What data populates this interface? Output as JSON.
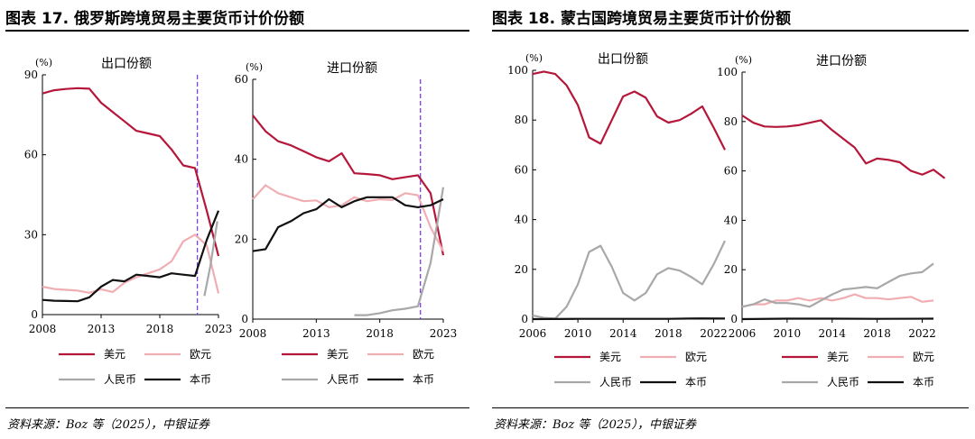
{
  "figure17": {
    "title": "图表 17. 俄罗斯跨境贸易主要货币计价份额",
    "source": "资料来源：Boz 等（2025），中银证券"
  },
  "figure18": {
    "title": "图表 18. 蒙古国跨境贸易主要货币计价份额",
    "source": "资料来源：Boz 等（2025），中银证券"
  },
  "colors": {
    "usd": "#b5173a",
    "eur": "#f0aeb3",
    "rmb": "#a8a8a8",
    "local": "#111111",
    "marker": "#7b3fe4"
  },
  "chart_data": [
    {
      "type": "line",
      "title": "出口份额",
      "unit": "(%)",
      "ylim": [
        0,
        90
      ],
      "yticks": [
        0,
        30,
        60,
        90
      ],
      "xlim": [
        2008,
        2023
      ],
      "xticks": [
        2008,
        2013,
        2018,
        2023
      ],
      "marker_x": 2021.2,
      "series": [
        {
          "name": "美元",
          "color": "usd",
          "points": [
            [
              2008,
              83
            ],
            [
              2009,
              84.2
            ],
            [
              2010,
              84.7
            ],
            [
              2011,
              85
            ],
            [
              2012,
              84.8
            ],
            [
              2013,
              79.5
            ],
            [
              2014,
              76
            ],
            [
              2015,
              72.5
            ],
            [
              2016,
              69
            ],
            [
              2017,
              68
            ],
            [
              2018,
              67
            ],
            [
              2019,
              62
            ],
            [
              2020,
              56
            ],
            [
              2021,
              55
            ],
            [
              2022,
              39
            ],
            [
              2023,
              22
            ]
          ]
        },
        {
          "name": "欧元",
          "color": "eur",
          "points": [
            [
              2008,
              10.5
            ],
            [
              2009,
              9.6
            ],
            [
              2010,
              9.3
            ],
            [
              2011,
              9
            ],
            [
              2012,
              8.2
            ],
            [
              2013,
              9.5
            ],
            [
              2014,
              8.5
            ],
            [
              2015,
              12
            ],
            [
              2016,
              14
            ],
            [
              2017,
              15.5
            ],
            [
              2018,
              17
            ],
            [
              2019,
              20
            ],
            [
              2020,
              27.5
            ],
            [
              2021,
              30
            ],
            [
              2022,
              26
            ],
            [
              2023,
              8
            ]
          ]
        },
        {
          "name": "人民币",
          "color": "rmb",
          "points": [
            [
              2021.8,
              7
            ],
            [
              2022.3,
              18
            ],
            [
              2022.9,
              35
            ]
          ]
        },
        {
          "name": "本币",
          "color": "local",
          "points": [
            [
              2008,
              5.5
            ],
            [
              2009,
              5.2
            ],
            [
              2010,
              5.1
            ],
            [
              2011,
              5
            ],
            [
              2012,
              6.5
            ],
            [
              2013,
              10.5
            ],
            [
              2014,
              13
            ],
            [
              2015,
              12.5
            ],
            [
              2016,
              15
            ],
            [
              2017,
              14.5
            ],
            [
              2018,
              14
            ],
            [
              2019,
              15.5
            ],
            [
              2020,
              15
            ],
            [
              2021,
              14.5
            ],
            [
              2022,
              28
            ],
            [
              2023,
              39
            ]
          ]
        }
      ]
    },
    {
      "type": "line",
      "title": "进口份额",
      "unit": "(%)",
      "ylim": [
        0,
        60
      ],
      "yticks": [
        0,
        20,
        40,
        60
      ],
      "xlim": [
        2008,
        2023
      ],
      "xticks": [
        2008,
        2013,
        2018,
        2023
      ],
      "marker_x": 2021.2,
      "series": [
        {
          "name": "美元",
          "color": "usd",
          "points": [
            [
              2008,
              51
            ],
            [
              2009,
              47
            ],
            [
              2010,
              44.5
            ],
            [
              2011,
              43.5
            ],
            [
              2012,
              42
            ],
            [
              2013,
              40.5
            ],
            [
              2014,
              39.5
            ],
            [
              2015,
              41.5
            ],
            [
              2016,
              36.5
            ],
            [
              2017,
              36.3
            ],
            [
              2018,
              36
            ],
            [
              2019,
              35
            ],
            [
              2020,
              35.5
            ],
            [
              2021,
              36
            ],
            [
              2022,
              31.5
            ],
            [
              2023,
              16
            ]
          ]
        },
        {
          "name": "欧元",
          "color": "eur",
          "points": [
            [
              2008,
              30
            ],
            [
              2009,
              33.5
            ],
            [
              2010,
              31.5
            ],
            [
              2011,
              30.5
            ],
            [
              2012,
              29.5
            ],
            [
              2013,
              29.7
            ],
            [
              2014,
              28
            ],
            [
              2015,
              28.5
            ],
            [
              2016,
              30.5
            ],
            [
              2017,
              29.5
            ],
            [
              2018,
              30
            ],
            [
              2019,
              29.8
            ],
            [
              2020,
              31.5
            ],
            [
              2021,
              31
            ],
            [
              2022,
              23
            ],
            [
              2023,
              17
            ]
          ]
        },
        {
          "name": "人民币",
          "color": "rmb",
          "points": [
            [
              2016,
              1
            ],
            [
              2017,
              1
            ],
            [
              2018,
              1.5
            ],
            [
              2019,
              2.2
            ],
            [
              2020,
              2.6
            ],
            [
              2021,
              3.2
            ],
            [
              2022,
              14
            ],
            [
              2023,
              33
            ]
          ]
        },
        {
          "name": "本币",
          "color": "local",
          "points": [
            [
              2008,
              17
            ],
            [
              2009,
              17.5
            ],
            [
              2010,
              23
            ],
            [
              2011,
              24.5
            ],
            [
              2012,
              26.5
            ],
            [
              2013,
              27.5
            ],
            [
              2014,
              30
            ],
            [
              2015,
              28
            ],
            [
              2016,
              29.5
            ],
            [
              2017,
              30.5
            ],
            [
              2018,
              30.5
            ],
            [
              2019,
              30.5
            ],
            [
              2020,
              28.5
            ],
            [
              2021,
              28
            ],
            [
              2022,
              28.5
            ],
            [
              2023,
              30
            ]
          ]
        }
      ]
    },
    {
      "type": "line",
      "title": "出口份额",
      "unit": "(%)",
      "ylim": [
        0,
        100
      ],
      "yticks": [
        0,
        20,
        40,
        60,
        80,
        100
      ],
      "xlim": [
        2006,
        2023
      ],
      "xticks": [
        2006,
        2010,
        2014,
        2018,
        2022
      ],
      "series": [
        {
          "name": "美元",
          "color": "usd",
          "points": [
            [
              2006,
              98.5
            ],
            [
              2007,
              99.5
            ],
            [
              2008,
              98.5
            ],
            [
              2009,
              94
            ],
            [
              2010,
              86
            ],
            [
              2011,
              73
            ],
            [
              2012,
              70.5
            ],
            [
              2013,
              80
            ],
            [
              2014,
              89.5
            ],
            [
              2015,
              91.5
            ],
            [
              2016,
              89
            ],
            [
              2017,
              81.5
            ],
            [
              2018,
              79
            ],
            [
              2019,
              80
            ],
            [
              2020,
              82.5
            ],
            [
              2021,
              85.5
            ],
            [
              2022,
              77
            ],
            [
              2023,
              68
            ]
          ]
        },
        {
          "name": "欧元",
          "color": "eur",
          "points": []
        },
        {
          "name": "人民币",
          "color": "rmb",
          "points": [
            [
              2006,
              1.5
            ],
            [
              2007,
              0.5
            ],
            [
              2008,
              0.2
            ],
            [
              2009,
              5
            ],
            [
              2010,
              14
            ],
            [
              2011,
              27
            ],
            [
              2012,
              29.5
            ],
            [
              2013,
              21
            ],
            [
              2014,
              10.5
            ],
            [
              2015,
              7.5
            ],
            [
              2016,
              10.5
            ],
            [
              2017,
              18
            ],
            [
              2018,
              20.5
            ],
            [
              2019,
              19.5
            ],
            [
              2020,
              17
            ],
            [
              2021,
              14
            ],
            [
              2022,
              22
            ],
            [
              2023,
              31.5
            ]
          ]
        },
        {
          "name": "本币",
          "color": "local",
          "points": [
            [
              2006,
              0
            ],
            [
              2010,
              0.1
            ],
            [
              2014,
              0.1
            ],
            [
              2018,
              0.1
            ],
            [
              2021,
              0.3
            ],
            [
              2023,
              0.2
            ]
          ]
        }
      ]
    },
    {
      "type": "line",
      "title": "进口份额",
      "unit": "(%)",
      "ylim": [
        0,
        100
      ],
      "yticks": [
        0,
        20,
        40,
        60,
        80,
        100
      ],
      "xlim": [
        2006,
        2023
      ],
      "xticks": [
        2006,
        2010,
        2014,
        2018,
        2022
      ],
      "series": [
        {
          "name": "美元",
          "color": "usd",
          "points": [
            [
              2006,
              82.5
            ],
            [
              2007,
              79.5
            ],
            [
              2008,
              78
            ],
            [
              2009,
              77.8
            ],
            [
              2010,
              78
            ],
            [
              2011,
              78.5
            ],
            [
              2012,
              79.5
            ],
            [
              2013,
              80.5
            ],
            [
              2014,
              76.5
            ],
            [
              2015,
              73
            ],
            [
              2016,
              69.5
            ],
            [
              2017,
              63
            ],
            [
              2018,
              65
            ],
            [
              2019,
              64.5
            ],
            [
              2020,
              63.5
            ],
            [
              2021,
              60
            ],
            [
              2022,
              58.5
            ],
            [
              2023,
              60.5
            ],
            [
              2024,
              57
            ]
          ]
        },
        {
          "name": "欧元",
          "color": "eur",
          "points": [
            [
              2006,
              5
            ],
            [
              2007,
              6
            ],
            [
              2008,
              6
            ],
            [
              2009,
              7.5
            ],
            [
              2010,
              7.5
            ],
            [
              2011,
              8.5
            ],
            [
              2012,
              7.5
            ],
            [
              2013,
              8.5
            ],
            [
              2014,
              7.5
            ],
            [
              2015,
              8.5
            ],
            [
              2016,
              10
            ],
            [
              2017,
              8.5
            ],
            [
              2018,
              8.5
            ],
            [
              2019,
              8
            ],
            [
              2020,
              8.5
            ],
            [
              2021,
              9
            ],
            [
              2022,
              7
            ],
            [
              2023,
              7.5
            ]
          ]
        },
        {
          "name": "人民币",
          "color": "rmb",
          "points": [
            [
              2006,
              5
            ],
            [
              2007,
              6
            ],
            [
              2008,
              8
            ],
            [
              2009,
              6.5
            ],
            [
              2010,
              6.5
            ],
            [
              2011,
              6
            ],
            [
              2012,
              5
            ],
            [
              2013,
              7.5
            ],
            [
              2014,
              10
            ],
            [
              2015,
              12
            ],
            [
              2016,
              12.5
            ],
            [
              2017,
              13
            ],
            [
              2018,
              12.5
            ],
            [
              2019,
              15
            ],
            [
              2020,
              17.5
            ],
            [
              2021,
              18.5
            ],
            [
              2022,
              19
            ],
            [
              2023,
              22.5
            ]
          ]
        },
        {
          "name": "本币",
          "color": "local",
          "points": [
            [
              2006,
              0
            ],
            [
              2010,
              0.2
            ],
            [
              2014,
              0.2
            ],
            [
              2018,
              0.1
            ],
            [
              2023,
              0.2
            ]
          ]
        }
      ]
    }
  ]
}
